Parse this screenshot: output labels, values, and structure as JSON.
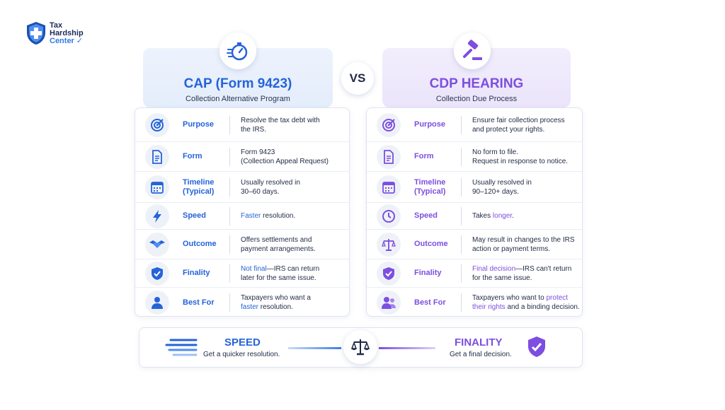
{
  "brand": {
    "line1": "Tax",
    "line2": "Hardship",
    "line3": "Center"
  },
  "vs": "VS",
  "cap": {
    "title": "CAP (Form 9423)",
    "subtitle": "Collection Alternative Program",
    "rows": [
      {
        "label": "Purpose",
        "desc1": "Resolve the tax debt with",
        "desc2": "the IRS."
      },
      {
        "label": "Form",
        "desc1": "Form 9423",
        "desc2": "(Collection Appeal Request)"
      },
      {
        "label1": "Timeline",
        "label2": "(Typical)",
        "desc1": "Usually resolved in",
        "desc2": "30–60 days."
      },
      {
        "label": "Speed",
        "hl": "Faster",
        "rest": " resolution."
      },
      {
        "label": "Outcome",
        "desc1": "Offers settlements and",
        "desc2": "payment arrangements."
      },
      {
        "label": "Finality",
        "hl": "Not final",
        "rest": "—IRS can return",
        "desc2": "later for the same issue."
      },
      {
        "label": "Best For",
        "desc1": "Taxpayers who want a",
        "hl2": "faster",
        "rest2": " resolution."
      }
    ]
  },
  "cdp": {
    "title": "CDP HEARING",
    "subtitle": "Collection Due Process",
    "rows": [
      {
        "label": "Purpose",
        "desc1": "Ensure fair collection process",
        "desc2": "and protect your rights."
      },
      {
        "label": "Form",
        "desc1": "No form to file.",
        "desc2": "Request in response to notice."
      },
      {
        "label1": "Timeline",
        "label2": "(Typical)",
        "desc1": "Usually resolved in",
        "desc2": "90–120+ days."
      },
      {
        "label": "Speed",
        "pre": "Takes ",
        "hl": "longer",
        "rest": "."
      },
      {
        "label": "Outcome",
        "desc1": "May result in changes to the IRS",
        "desc2": "action or payment terms."
      },
      {
        "label": "Finality",
        "hl": "Final decision",
        "rest": "—IRS can't return",
        "desc2": "for the same issue."
      },
      {
        "label": "Best For",
        "pre": "Taxpayers who want to ",
        "hl": "protect",
        "hl2": "their rights",
        "rest2": " and a binding decision."
      }
    ]
  },
  "bottom": {
    "speed_title": "SPEED",
    "speed_sub": "Get a quicker resolution.",
    "final_title": "FINALITY",
    "final_sub": "Get a final decision."
  },
  "colors": {
    "blue": "#2563d9",
    "purple": "#7d4ee0",
    "navy": "#1a2b5c"
  }
}
